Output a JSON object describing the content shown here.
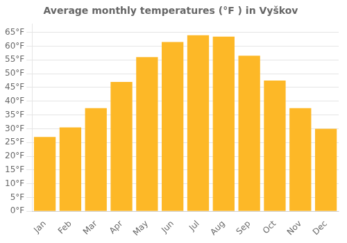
{
  "chart_data": {
    "type": "bar",
    "title": "Average monthly temperatures (°F ) in Vyškov",
    "categories": [
      "Jan",
      "Feb",
      "Mar",
      "Apr",
      "May",
      "Jun",
      "Jul",
      "Aug",
      "Sep",
      "Oct",
      "Nov",
      "Dec"
    ],
    "values": [
      27,
      30.5,
      37.5,
      47,
      56,
      61.5,
      64,
      63.5,
      56.5,
      47.5,
      37.5,
      30
    ],
    "color": "#FDB827",
    "ylim": [
      0,
      68
    ],
    "yticks": [
      {
        "value": 0,
        "label": "0°F"
      },
      {
        "value": 5,
        "label": "5°F"
      },
      {
        "value": 10,
        "label": "10°F"
      },
      {
        "value": 15,
        "label": "15°F"
      },
      {
        "value": 20,
        "label": "20°F"
      },
      {
        "value": 25,
        "label": "25°F"
      },
      {
        "value": 30,
        "label": "30°F"
      },
      {
        "value": 35,
        "label": "35°F"
      },
      {
        "value": 40,
        "label": "40°F"
      },
      {
        "value": 45,
        "label": "45°F"
      },
      {
        "value": 50,
        "label": "50°F"
      },
      {
        "value": 55,
        "label": "55°F"
      },
      {
        "value": 60,
        "label": "60°F"
      },
      {
        "value": 65,
        "label": "65°F"
      }
    ],
    "grid": true
  }
}
